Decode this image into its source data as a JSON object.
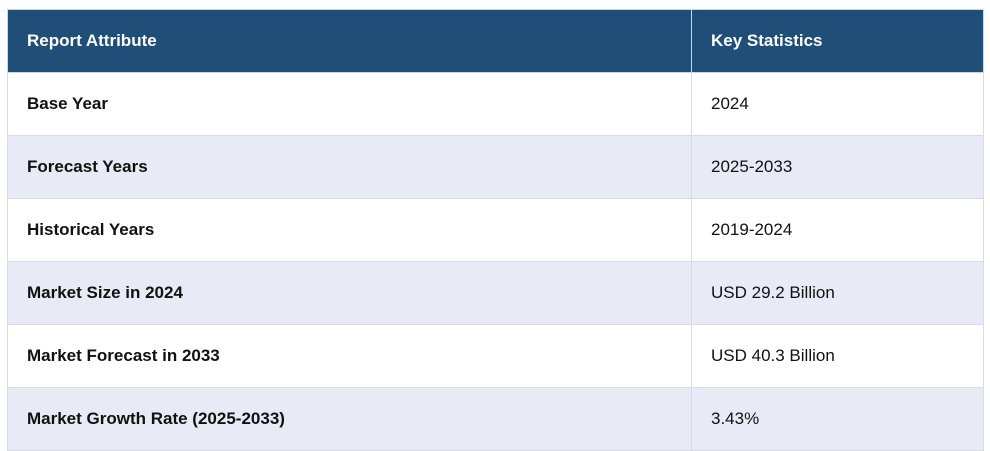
{
  "table": {
    "header": [
      "Report Attribute",
      "Key Statistics"
    ],
    "rows": [
      [
        "Base Year",
        "2024"
      ],
      [
        "Forecast Years",
        "2025-2033"
      ],
      [
        "Historical Years",
        "2019-2024"
      ],
      [
        "Market Size in 2024",
        "USD 29.2 Billion"
      ],
      [
        "Market Forecast in 2033",
        "USD 40.3 Billion"
      ],
      [
        "Market Growth Rate (2025-2033)",
        "3.43%"
      ]
    ]
  }
}
